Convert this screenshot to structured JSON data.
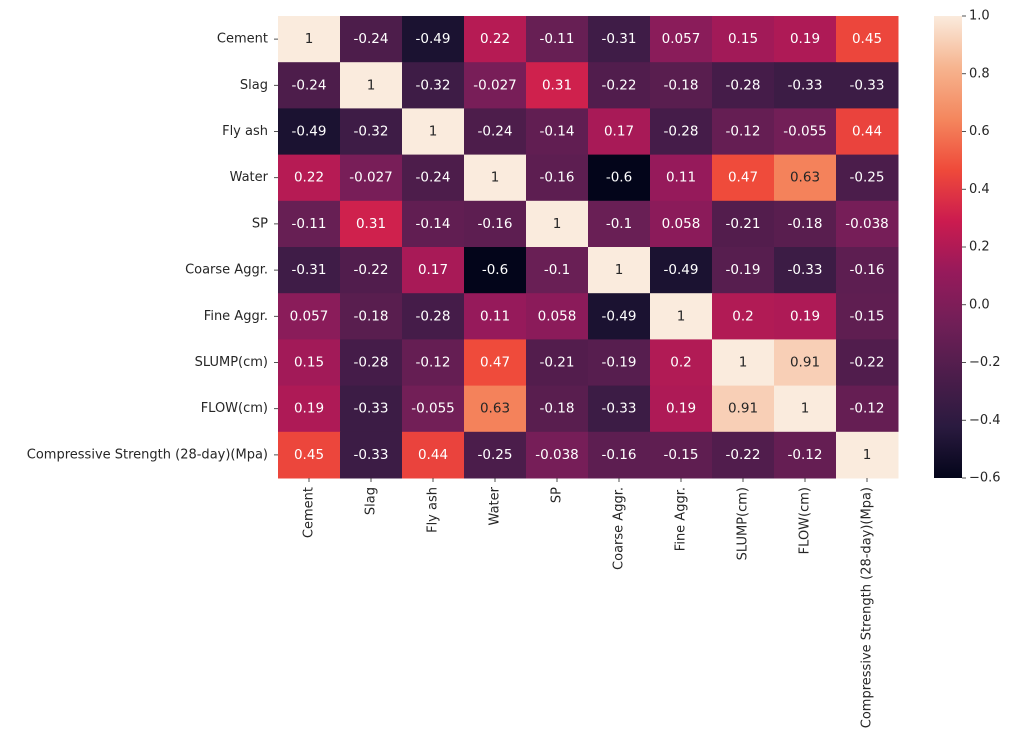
{
  "chart_data": {
    "type": "heatmap",
    "title": "",
    "xlabel": "",
    "ylabel": "",
    "x_categories": [
      "Cement",
      "Slag",
      "Fly ash",
      "Water",
      "SP",
      "Coarse Aggr.",
      "Fine Aggr.",
      "SLUMP(cm)",
      "FLOW(cm)",
      "Compressive Strength (28-day)(Mpa)"
    ],
    "y_categories": [
      "Cement",
      "Slag",
      "Fly ash",
      "Water",
      "SP",
      "Coarse Aggr.",
      "Fine Aggr.",
      "SLUMP(cm)",
      "FLOW(cm)",
      "Compressive Strength (28-day)(Mpa)"
    ],
    "values": [
      [
        1,
        -0.24,
        -0.49,
        0.22,
        -0.11,
        -0.31,
        0.057,
        0.15,
        0.19,
        0.45
      ],
      [
        -0.24,
        1,
        -0.32,
        -0.027,
        0.31,
        -0.22,
        -0.18,
        -0.28,
        -0.33,
        -0.33
      ],
      [
        -0.49,
        -0.32,
        1,
        -0.24,
        -0.14,
        0.17,
        -0.28,
        -0.12,
        -0.055,
        0.44
      ],
      [
        0.22,
        -0.027,
        -0.24,
        1,
        -0.16,
        -0.6,
        0.11,
        0.47,
        0.63,
        -0.25
      ],
      [
        -0.11,
        0.31,
        -0.14,
        -0.16,
        1,
        -0.1,
        0.058,
        -0.21,
        -0.18,
        -0.038
      ],
      [
        -0.31,
        -0.22,
        0.17,
        -0.6,
        -0.1,
        1,
        -0.49,
        -0.19,
        -0.33,
        -0.16
      ],
      [
        0.057,
        -0.18,
        -0.28,
        0.11,
        0.058,
        -0.49,
        1,
        0.2,
        0.19,
        -0.15
      ],
      [
        0.15,
        -0.28,
        -0.12,
        0.47,
        -0.21,
        -0.19,
        0.2,
        1,
        0.91,
        -0.22
      ],
      [
        0.19,
        -0.33,
        -0.055,
        0.63,
        -0.18,
        -0.33,
        0.19,
        0.91,
        1,
        -0.12
      ],
      [
        0.45,
        -0.33,
        0.44,
        -0.25,
        -0.038,
        -0.16,
        -0.15,
        -0.22,
        -0.12,
        1
      ]
    ],
    "annotations": [
      [
        "1",
        "-0.24",
        "-0.49",
        "0.22",
        "-0.11",
        "-0.31",
        "0.057",
        "0.15",
        "0.19",
        "0.45"
      ],
      [
        "-0.24",
        "1",
        "-0.32",
        "-0.027",
        "0.31",
        "-0.22",
        "-0.18",
        "-0.28",
        "-0.33",
        "-0.33"
      ],
      [
        "-0.49",
        "-0.32",
        "1",
        "-0.24",
        "-0.14",
        "0.17",
        "-0.28",
        "-0.12",
        "-0.055",
        "0.44"
      ],
      [
        "0.22",
        "-0.027",
        "-0.24",
        "1",
        "-0.16",
        "-0.6",
        "0.11",
        "0.47",
        "0.63",
        "-0.25"
      ],
      [
        "-0.11",
        "0.31",
        "-0.14",
        "-0.16",
        "1",
        "-0.1",
        "0.058",
        "-0.21",
        "-0.18",
        "-0.038"
      ],
      [
        "-0.31",
        "-0.22",
        "0.17",
        "-0.6",
        "-0.1",
        "1",
        "-0.49",
        "-0.19",
        "-0.33",
        "-0.16"
      ],
      [
        "0.057",
        "-0.18",
        "-0.28",
        "0.11",
        "0.058",
        "-0.49",
        "1",
        "0.2",
        "0.19",
        "-0.15"
      ],
      [
        "0.15",
        "-0.28",
        "-0.12",
        "0.47",
        "-0.21",
        "-0.19",
        "0.2",
        "1",
        "0.91",
        "-0.22"
      ],
      [
        "0.19",
        "-0.33",
        "-0.055",
        "0.63",
        "-0.18",
        "-0.33",
        "0.19",
        "0.91",
        "1",
        "-0.12"
      ],
      [
        "0.45",
        "-0.33",
        "0.44",
        "-0.25",
        "-0.038",
        "-0.16",
        "-0.15",
        "-0.22",
        "-0.12",
        "1"
      ]
    ],
    "colorbar": {
      "range": [
        -0.6,
        1.0
      ],
      "ticks": [
        -0.6,
        -0.4,
        -0.2,
        0.0,
        0.2,
        0.4,
        0.6,
        0.8,
        1.0
      ],
      "tick_labels": [
        "−0.6",
        "−0.4",
        "−0.2",
        "0.0",
        "0.2",
        "0.4",
        "0.6",
        "0.8",
        "1.0"
      ],
      "colormap": "rocket",
      "color_stops": [
        "#03051a",
        "#2a1a3f",
        "#4c1d4b",
        "#701f57",
        "#961a5b",
        "#cb1b4f",
        "#ef4a3a",
        "#f4875e",
        "#f6b48f",
        "#faebdd"
      ]
    },
    "grid": false,
    "legend": "colorbar-right"
  }
}
